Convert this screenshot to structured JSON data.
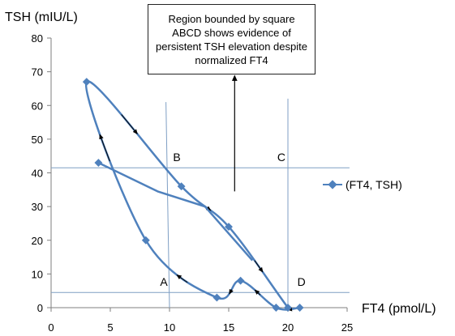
{
  "chart_data": {
    "type": "scatter",
    "xlabel": "FT4 (pmol/L)",
    "ylabel": "TSH (mIU/L)",
    "xlim": [
      0,
      25
    ],
    "ylim": [
      0,
      80
    ],
    "x_ticks": [
      0,
      5,
      10,
      15,
      20,
      25
    ],
    "y_ticks": [
      0,
      10,
      20,
      30,
      40,
      50,
      60,
      70,
      80
    ],
    "grid": false,
    "legend_position": "right",
    "series": [
      {
        "name": "(FT4, TSH)",
        "color": "#4f81bd",
        "smooth": true,
        "x": [
          21,
          19,
          16,
          14,
          8,
          3,
          11,
          15,
          20
        ],
        "y": [
          0,
          0,
          8,
          3,
          20,
          67,
          36,
          24,
          0
        ],
        "tail": {
          "x": [
            4,
            9,
            13,
            17
          ],
          "y": [
            43,
            34.5,
            30,
            14
          ]
        }
      }
    ],
    "reference_lines": {
      "horizontal": [
        41.5,
        4.5
      ],
      "vertical": [
        {
          "x_bottom": 10,
          "x_top": 9.7,
          "y_top": 61
        },
        {
          "x": 20,
          "y_top": 62
        }
      ]
    },
    "corner_labels": [
      {
        "text": "A",
        "x": 9.2,
        "y": 6.5
      },
      {
        "text": "B",
        "x": 10.3,
        "y": 43.5
      },
      {
        "text": "C",
        "x": 19.1,
        "y": 43.5
      },
      {
        "text": "D",
        "x": 20.8,
        "y": 6.5
      }
    ],
    "annotation": {
      "text": "Region bounded by square ABCD shows evidence of persistent TSH elevation despite normalized FT4",
      "arrow_to": {
        "x": 15.5,
        "y": 34.5
      }
    }
  }
}
